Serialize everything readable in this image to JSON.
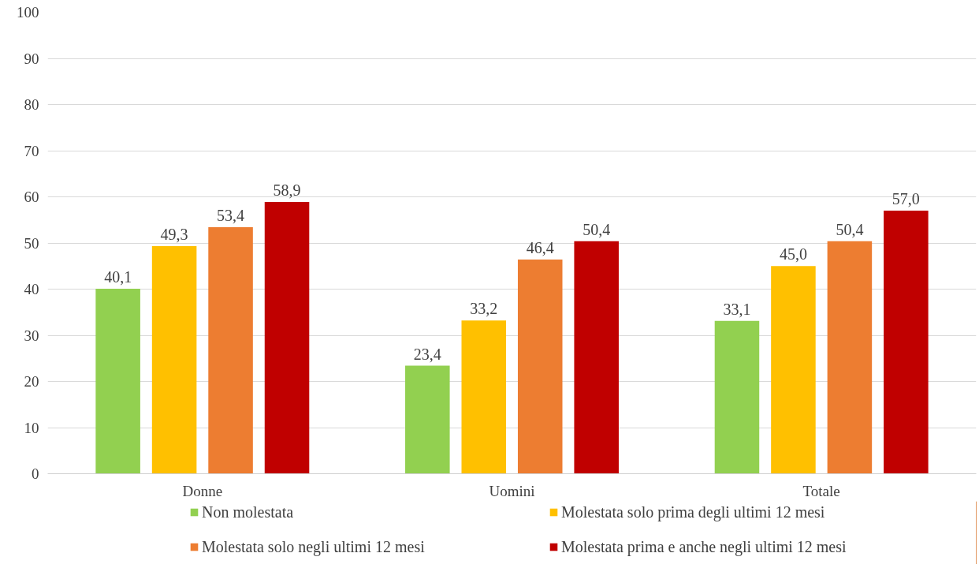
{
  "chart_data": {
    "type": "bar",
    "categories": [
      "Donne",
      "Uomini",
      "Totale"
    ],
    "series": [
      {
        "name": "Non molestata",
        "color": "#92d050",
        "values": [
          40.1,
          23.4,
          33.1
        ],
        "value_labels": [
          "40,1",
          "23,4",
          "33,1"
        ]
      },
      {
        "name": "Molestata solo prima degli ultimi 12 mesi",
        "color": "#ffc000",
        "values": [
          49.3,
          33.2,
          45.0
        ],
        "value_labels": [
          "49,3",
          "33,2",
          "45,0"
        ]
      },
      {
        "name": "Molestata solo negli ultimi 12 mesi",
        "color": "#ed7d31",
        "values": [
          53.4,
          46.4,
          50.4
        ],
        "value_labels": [
          "53,4",
          "46,4",
          "50,4"
        ]
      },
      {
        "name": "Molestata prima e anche negli ultimi 12 mesi",
        "color": "#c00000",
        "values": [
          58.9,
          50.4,
          57.0
        ],
        "value_labels": [
          "58,9",
          "50,4",
          "57,0"
        ]
      }
    ],
    "ylim": [
      0,
      100
    ],
    "yticks": [
      0,
      10,
      20,
      30,
      40,
      50,
      60,
      70,
      80,
      90,
      100
    ],
    "grid": "y",
    "legend": "bottom"
  }
}
